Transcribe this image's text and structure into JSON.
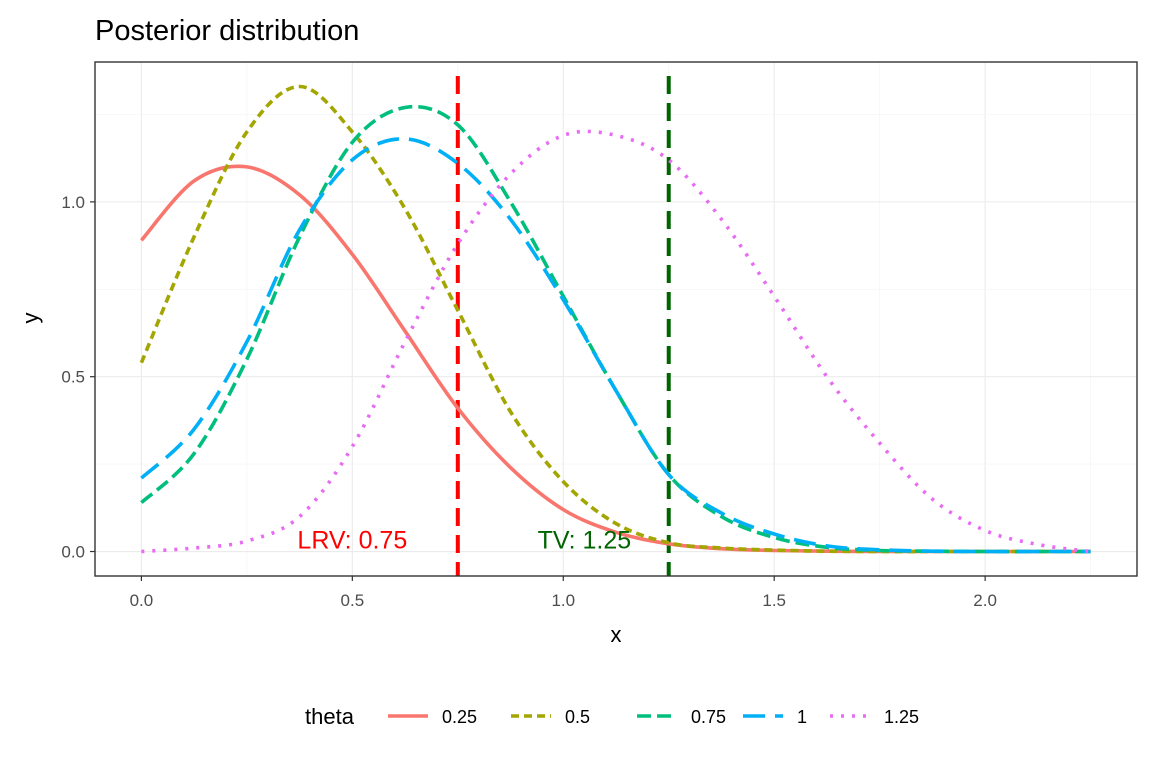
{
  "chart_data": {
    "type": "line",
    "title": "Posterior distribution",
    "xlabel": "x",
    "ylabel": "y",
    "xlim": [
      -0.11,
      2.36
    ],
    "ylim": [
      -0.07,
      1.4
    ],
    "x_ticks": [
      {
        "value": 0,
        "label": "0.0"
      },
      {
        "value": 0.5,
        "label": "0.5"
      },
      {
        "value": 1,
        "label": "1.0"
      },
      {
        "value": 1.5,
        "label": "1.5"
      },
      {
        "value": 2,
        "label": "2.0"
      }
    ],
    "y_ticks": [
      {
        "value": 0,
        "label": "0.0"
      },
      {
        "value": 0.5,
        "label": "0.5"
      },
      {
        "value": 1,
        "label": "1.0"
      }
    ],
    "grid": true,
    "legend": {
      "title": "theta",
      "position": "bottom"
    },
    "x": [
      0,
      0.125,
      0.25,
      0.375,
      0.5,
      0.625,
      0.75,
      0.875,
      1,
      1.125,
      1.25,
      1.375,
      1.5,
      1.625,
      1.75,
      1.875,
      2,
      2.125,
      2.25
    ],
    "series": [
      {
        "name": "0.25",
        "color": "#F8766D",
        "dash": "solid",
        "values": [
          0.89,
          1.06,
          1.1,
          1.02,
          0.85,
          0.63,
          0.41,
          0.24,
          0.12,
          0.055,
          0.022,
          0.008,
          0.003,
          0.001,
          0.0,
          0.0,
          0.0,
          0.0,
          0.0
        ]
      },
      {
        "name": "0.5",
        "color": "#A3A500",
        "dash": "8,5",
        "values": [
          0.54,
          0.9,
          1.2,
          1.33,
          1.2,
          0.98,
          0.69,
          0.4,
          0.2,
          0.08,
          0.025,
          0.01,
          0.004,
          0.001,
          0.0,
          0.0,
          0.0,
          0.0,
          0.0
        ]
      },
      {
        "name": "0.75",
        "color": "#00BF7D",
        "dash": "14,6",
        "values": [
          0.14,
          0.28,
          0.55,
          0.9,
          1.17,
          1.27,
          1.22,
          1.0,
          0.73,
          0.46,
          0.22,
          0.1,
          0.04,
          0.012,
          0.003,
          0.001,
          0.0,
          0.0,
          0.0
        ]
      },
      {
        "name": "1",
        "color": "#00B0F6",
        "dash": "22,10",
        "values": [
          0.21,
          0.35,
          0.6,
          0.92,
          1.12,
          1.18,
          1.11,
          0.95,
          0.72,
          0.46,
          0.22,
          0.11,
          0.05,
          0.016,
          0.005,
          0.001,
          0.0,
          0.0,
          0.0
        ]
      },
      {
        "name": "1.25",
        "color": "#E76BF3",
        "dash": "3,8",
        "values": [
          0.0,
          0.01,
          0.03,
          0.1,
          0.3,
          0.6,
          0.88,
          1.08,
          1.19,
          1.19,
          1.12,
          0.95,
          0.73,
          0.5,
          0.31,
          0.15,
          0.06,
          0.02,
          0.0
        ]
      }
    ],
    "vlines": [
      {
        "x": 0.75,
        "color": "#FF0000",
        "label": "LRV: 0.75",
        "label_x": 0.5,
        "label_y": 0.02
      },
      {
        "x": 1.25,
        "color": "#006400",
        "label": "TV: 1.25",
        "label_x": 1.05,
        "label_y": 0.02
      }
    ]
  }
}
